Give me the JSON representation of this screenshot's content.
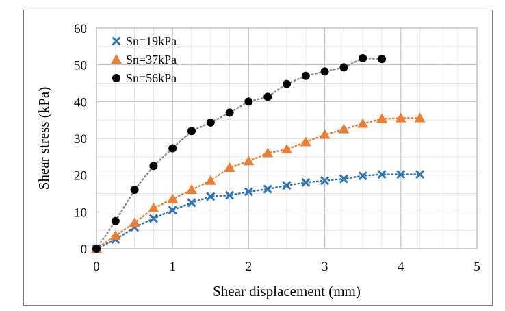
{
  "chart_data": {
    "type": "scatter",
    "title": "",
    "xlabel": "Shear displacement (mm)",
    "ylabel": "Shear stress (kPa)",
    "xlim": [
      0,
      5
    ],
    "ylim": [
      0,
      60
    ],
    "xticks": [
      "0",
      "1",
      "2",
      "3",
      "4",
      "5"
    ],
    "yticks": [
      "0",
      "10",
      "20",
      "30",
      "40",
      "50",
      "60"
    ],
    "grid": true,
    "legend": "top-left",
    "series": [
      {
        "name": "Sn=19kPa",
        "marker": "x",
        "color": "#2e75b6",
        "x": [
          0,
          0.25,
          0.5,
          0.75,
          1.0,
          1.25,
          1.5,
          1.75,
          2.0,
          2.25,
          2.5,
          2.75,
          3.0,
          3.25,
          3.5,
          3.75,
          4.0,
          4.25
        ],
        "y": [
          0,
          2.5,
          5.8,
          8.2,
          10.5,
          12.5,
          14.2,
          14.5,
          15.5,
          16.2,
          17.2,
          18,
          18.5,
          19,
          19.8,
          20.2,
          20.2,
          20.2
        ]
      },
      {
        "name": "Sn=37kPa",
        "marker": "triangle",
        "color": "#ed7d31",
        "x": [
          0,
          0.25,
          0.5,
          0.75,
          1.0,
          1.25,
          1.5,
          1.75,
          2.0,
          2.25,
          2.5,
          2.75,
          3.0,
          3.25,
          3.5,
          3.75,
          4.0,
          4.25
        ],
        "y": [
          0,
          3.5,
          7,
          11,
          13.5,
          16,
          18.5,
          22,
          23.8,
          26,
          27,
          29,
          31,
          32.5,
          34,
          35.3,
          35.5,
          35.5
        ]
      },
      {
        "name": "Sn=56kPa",
        "marker": "circle",
        "color": "#000000",
        "x": [
          0,
          0.25,
          0.5,
          0.75,
          1.0,
          1.25,
          1.5,
          1.75,
          2.0,
          2.25,
          2.5,
          2.75,
          3.0,
          3.25,
          3.5,
          3.75
        ],
        "y": [
          0,
          7.5,
          16,
          22.5,
          27.3,
          32,
          34.3,
          37,
          40,
          41.3,
          44.8,
          47,
          48.2,
          49.3,
          51.8,
          51.6
        ]
      }
    ]
  }
}
